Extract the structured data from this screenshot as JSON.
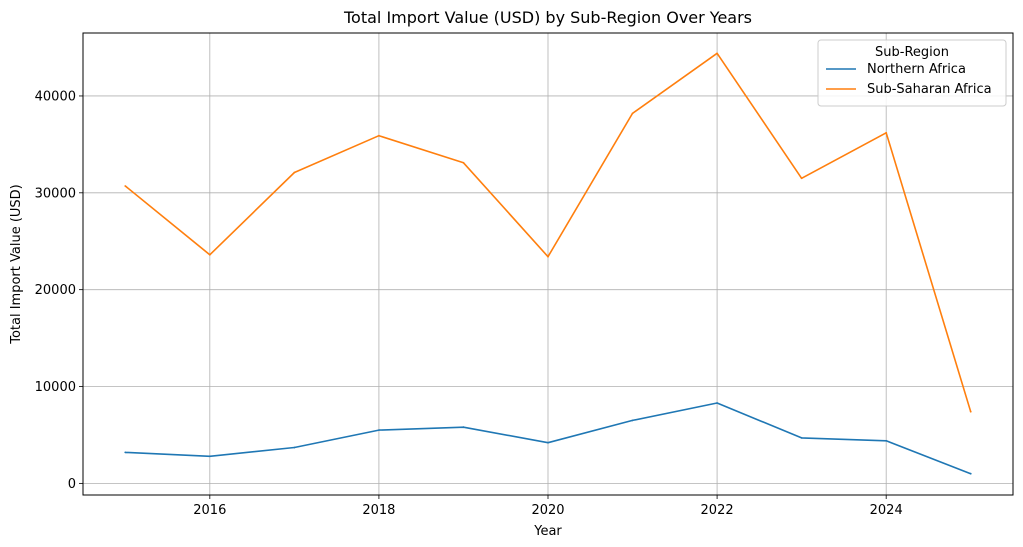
{
  "chart_data": {
    "type": "line",
    "title": "Total Import Value (USD) by Sub-Region Over Years",
    "xlabel": "Year",
    "ylabel": "Total Import Value (USD)",
    "x": [
      2015,
      2016,
      2017,
      2018,
      2019,
      2020,
      2021,
      2022,
      2023,
      2024,
      2025
    ],
    "xlim": [
      2014.5,
      2025.5
    ],
    "ylim": [
      -1200,
      46500
    ],
    "xticks": [
      "2016",
      "2018",
      "2020",
      "2022",
      "2024"
    ],
    "yticks": [
      "0",
      "10000",
      "20000",
      "30000",
      "40000"
    ],
    "grid": true,
    "legend": {
      "title": "Sub-Region",
      "placement": "top-right"
    },
    "series": [
      {
        "name": "Northern Africa",
        "color": "#1f77b4",
        "values": [
          3200,
          2800,
          3700,
          5500,
          5800,
          4200,
          6500,
          8300,
          4700,
          4400,
          1000
        ]
      },
      {
        "name": "Sub-Saharan Africa",
        "color": "#ff7f0e",
        "values": [
          30700,
          23600,
          32100,
          35900,
          33100,
          23400,
          38200,
          44400,
          31500,
          36200,
          7400
        ]
      }
    ]
  }
}
